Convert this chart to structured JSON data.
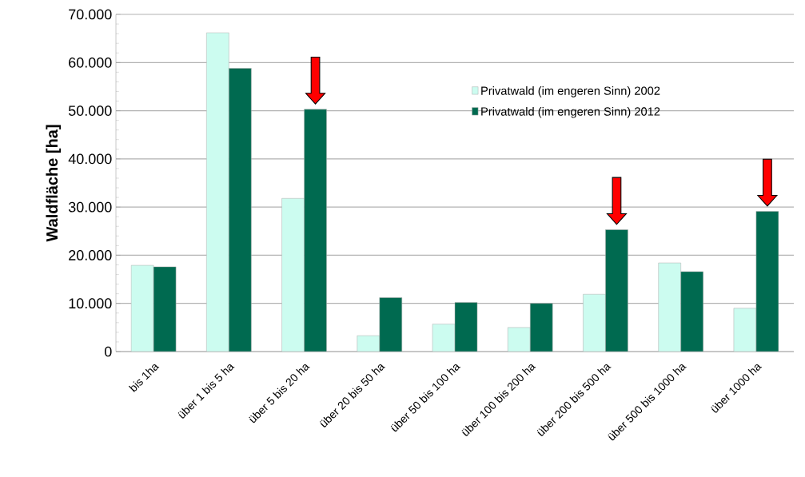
{
  "chart_data": {
    "type": "bar",
    "ylabel": "Waldfläche [ha]",
    "categories": [
      "bis 1ha",
      "über 1 bis 5 ha",
      "über 5 bis 20 ha",
      "über 20 bis 50 ha",
      "über 50 bis 100 ha",
      "über 100 bis 200 ha",
      "über 200 bis 500 ha",
      "über 500 bis 1000 ha",
      "über 1000 ha"
    ],
    "series": [
      {
        "name": "Privatwald (im engeren Sinn) 2002",
        "color": "#ccfcf0",
        "values": [
          17900,
          66200,
          31800,
          3300,
          5700,
          5000,
          11900,
          18400,
          9000
        ]
      },
      {
        "name": "Privatwald (im engeren Sinn) 2012",
        "color": "#006a50",
        "values": [
          17600,
          58800,
          50300,
          11200,
          10200,
          10000,
          25300,
          16600,
          29100
        ]
      }
    ],
    "ylim": [
      0,
      70000
    ],
    "yticks": [
      0,
      {
        "value": 10000,
        "label": "10.000"
      },
      {
        "value": 20000,
        "label": "20.000"
      },
      {
        "value": 30000,
        "label": "30.000"
      },
      {
        "value": 40000,
        "label": "40.000"
      },
      {
        "value": 50000,
        "label": "50.000"
      },
      {
        "value": 60000,
        "label": "60.000"
      },
      {
        "value": 70000,
        "label": "70.000"
      }
    ],
    "grid": "y",
    "legend": "top right"
  }
}
